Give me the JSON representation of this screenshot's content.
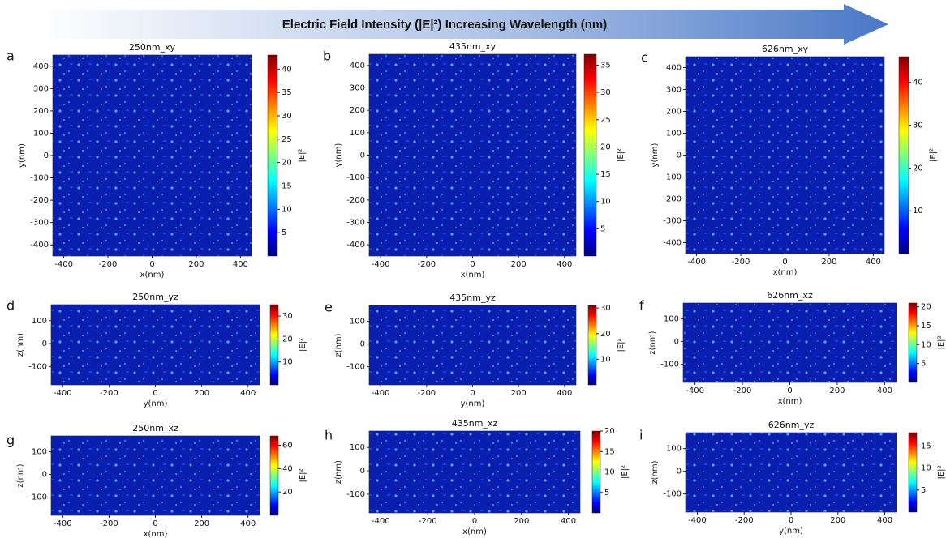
{
  "banner": {
    "title": "Electric Field Intensity (|E|²) Increasing Wavelength (nm)"
  },
  "chart_data": [
    {
      "type": "heatmap",
      "label": "a",
      "title": "250nm_xy",
      "xlabel": "x(nm)",
      "ylabel": "y(nm)",
      "xlim": [
        -450,
        450
      ],
      "ylim": [
        -450,
        450
      ],
      "xticks": [
        -400,
        -200,
        0,
        200,
        400
      ],
      "yticks": [
        -400,
        -300,
        -200,
        -100,
        0,
        100,
        200,
        300,
        400
      ],
      "colorbar_label": "|E|²",
      "clim": [
        0,
        43
      ],
      "cticks": [
        5,
        10,
        15,
        20,
        25,
        30,
        35,
        40
      ]
    },
    {
      "type": "heatmap",
      "label": "b",
      "title": "435nm_xy",
      "xlabel": "x(nm)",
      "ylabel": "y(nm)",
      "xlim": [
        -450,
        450
      ],
      "ylim": [
        -450,
        450
      ],
      "xticks": [
        -400,
        -200,
        0,
        200,
        400
      ],
      "yticks": [
        -400,
        -300,
        -200,
        -100,
        0,
        100,
        200,
        300,
        400
      ],
      "colorbar_label": "|E|²",
      "clim": [
        0,
        37
      ],
      "cticks": [
        5,
        10,
        15,
        20,
        25,
        30,
        35
      ]
    },
    {
      "type": "heatmap",
      "label": "c",
      "title": "626nm_xy",
      "xlabel": "x(nm)",
      "ylabel": "y(nm)",
      "xlim": [
        -450,
        450
      ],
      "ylim": [
        -450,
        450
      ],
      "xticks": [
        -400,
        -200,
        0,
        200,
        400
      ],
      "yticks": [
        -400,
        -300,
        -200,
        -100,
        0,
        100,
        200,
        300,
        400
      ],
      "colorbar_label": "|E|²",
      "clim": [
        0,
        46
      ],
      "cticks": [
        10,
        20,
        30,
        40
      ]
    },
    {
      "type": "heatmap",
      "label": "d",
      "title": "250nm_yz",
      "xlabel": "y(nm)",
      "ylabel": "z(nm)",
      "xlim": [
        -450,
        450
      ],
      "ylim": [
        -180,
        170
      ],
      "xticks": [
        -400,
        -200,
        0,
        200,
        400
      ],
      "yticks": [
        -100,
        0,
        100
      ],
      "colorbar_label": "|E|²",
      "clim": [
        0,
        35
      ],
      "cticks": [
        10,
        20,
        30
      ]
    },
    {
      "type": "heatmap",
      "label": "e",
      "title": "435nm_yz",
      "xlabel": "y(nm)",
      "ylabel": "z(nm)",
      "xlim": [
        -450,
        450
      ],
      "ylim": [
        -180,
        170
      ],
      "xticks": [
        -400,
        -200,
        0,
        200,
        400
      ],
      "yticks": [
        -100,
        0,
        100
      ],
      "colorbar_label": "|E|²",
      "clim": [
        0,
        31
      ],
      "cticks": [
        10,
        20,
        30
      ]
    },
    {
      "type": "heatmap",
      "label": "f",
      "title": "626nm_xz",
      "xlabel": "x(nm)",
      "ylabel": "z(nm)",
      "xlim": [
        -450,
        450
      ],
      "ylim": [
        -180,
        170
      ],
      "xticks": [
        -400,
        -200,
        0,
        200,
        400
      ],
      "yticks": [
        -100,
        0,
        100
      ],
      "colorbar_label": "|E|²",
      "clim": [
        0,
        21
      ],
      "cticks": [
        5,
        10,
        15,
        20
      ]
    },
    {
      "type": "heatmap",
      "label": "g",
      "title": "250nm_xz",
      "xlabel": "x(nm)",
      "ylabel": "z(nm)",
      "xlim": [
        -450,
        450
      ],
      "ylim": [
        -180,
        170
      ],
      "xticks": [
        -400,
        -200,
        0,
        200,
        400
      ],
      "yticks": [
        -100,
        0,
        100
      ],
      "colorbar_label": "|E|²",
      "clim": [
        0,
        68
      ],
      "cticks": [
        20,
        40,
        60
      ]
    },
    {
      "type": "heatmap",
      "label": "h",
      "title": "435nm_xz",
      "xlabel": "x(nm)",
      "ylabel": "z(nm)",
      "xlim": [
        -450,
        450
      ],
      "ylim": [
        -180,
        170
      ],
      "xticks": [
        -400,
        -200,
        0,
        200,
        400
      ],
      "yticks": [
        -100,
        0,
        100
      ],
      "colorbar_label": "|E|²",
      "clim": [
        0,
        20
      ],
      "cticks": [
        5,
        10,
        15,
        20
      ]
    },
    {
      "type": "heatmap",
      "label": "i",
      "title": "626nm_yz",
      "xlabel": "y(nm)",
      "ylabel": "z(nm)",
      "xlim": [
        -450,
        450
      ],
      "ylim": [
        -180,
        170
      ],
      "xticks": [
        -400,
        -200,
        0,
        200,
        400
      ],
      "yticks": [
        -100,
        0,
        100
      ],
      "colorbar_label": "|E|²",
      "clim": [
        0,
        18
      ],
      "cticks": [
        5,
        10,
        15
      ]
    }
  ]
}
